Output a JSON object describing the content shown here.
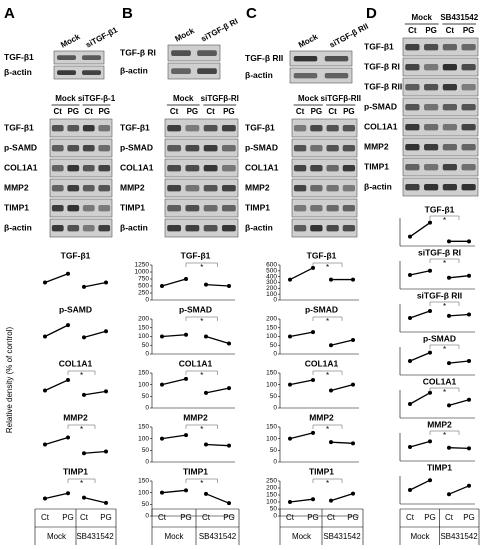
{
  "panels": [
    {
      "letter": "A",
      "top_blot": {
        "groups": [
          "Mock",
          "siTGF-β1"
        ],
        "rows": [
          "TGF-β1",
          "β-actin"
        ]
      },
      "main_blot": {
        "groups": [
          "Mock",
          "siTGF-β-1"
        ],
        "lanes": [
          "Ct",
          "PG",
          "Ct",
          "PG"
        ],
        "rows": [
          "TGF-β1",
          "p-SAMD",
          "COL1A1",
          "MMP2",
          "TIMP1",
          "β-actin"
        ]
      }
    },
    {
      "letter": "B",
      "top_blot": {
        "groups": [
          "Mock",
          "siTGF-β RI"
        ],
        "rows": [
          "TGF-β RI",
          "β-actin"
        ]
      },
      "main_blot": {
        "groups": [
          "Mock",
          "siTGFβ-RI"
        ],
        "lanes": [
          "Ct",
          "PG",
          "Ct",
          "PG"
        ],
        "rows": [
          "TGF-β1",
          "p-SMAD",
          "COL1A1",
          "MMP2",
          "TIMP1",
          "β-actin"
        ]
      }
    },
    {
      "letter": "C",
      "top_blot": {
        "groups": [
          "Mock",
          "siTGF-β RII"
        ],
        "rows": [
          "TGF-β RII",
          "β-actin"
        ]
      },
      "main_blot": {
        "groups": [
          "Mock",
          "siTGFβ-RII"
        ],
        "lanes": [
          "Ct",
          "PG",
          "Ct",
          "PG"
        ],
        "rows": [
          "TGF-β1",
          "p-SMAD",
          "COL1A1",
          "MMP2",
          "TIMP1",
          "β-actin"
        ]
      }
    },
    {
      "letter": "D",
      "main_blot": {
        "groups": [
          "Mock",
          "SB431542"
        ],
        "lanes": [
          "Ct",
          "PG",
          "Ct",
          "PG"
        ],
        "rows": [
          "TGF-β1",
          "TGF-β RI",
          "TGF-β RII",
          "p-SMAD",
          "COL1A1",
          "MMP2",
          "TIMP1",
          "β-actin"
        ]
      }
    }
  ],
  "y_axis_label": "Relative density (% of control)",
  "x_axes": [
    {
      "lanes": [
        "Ct",
        "PG",
        "Ct",
        "PG"
      ],
      "groups": [
        "Mock",
        "SB431542"
      ]
    },
    {
      "lanes": [
        "Ct",
        "PG",
        "Ct",
        "PG"
      ],
      "groups": [
        "Mock",
        "SB431542"
      ]
    },
    {
      "lanes": [
        "Ct",
        "PG",
        "Ct",
        "PG"
      ],
      "groups": [
        "Mock",
        "SB431542"
      ]
    },
    {
      "lanes": [
        "Ct",
        "PG",
        "Ct",
        "PG"
      ],
      "groups": [
        "Mock",
        "SB431542"
      ]
    }
  ],
  "chart_data": [
    {
      "type": "line",
      "title": "TGF-β1",
      "values": [
        100,
        150,
        75,
        100
      ],
      "ylim": [
        0,
        200
      ],
      "color": "#000000"
    },
    {
      "type": "line",
      "title": "p-SAMD",
      "values": [
        100,
        165,
        95,
        130
      ],
      "ylim": [
        0,
        200
      ],
      "color": "#000000"
    },
    {
      "type": "line",
      "title": "COL1A1",
      "values": [
        100,
        160,
        75,
        95
      ],
      "ylim": [
        0,
        200
      ],
      "color": "#000000",
      "annotation": "*"
    },
    {
      "type": "line",
      "title": "MMP2",
      "values": [
        100,
        140,
        50,
        60
      ],
      "ylim": [
        0,
        200
      ],
      "color": "#000000",
      "annotation": "*"
    },
    {
      "type": "line",
      "title": "TIMP1",
      "values": [
        100,
        130,
        105,
        75
      ],
      "ylim": [
        0,
        200
      ],
      "color": "#000000",
      "annotation": "*"
    },
    {
      "type": "line",
      "title": "TGF-β1",
      "values": [
        500,
        750,
        550,
        500
      ],
      "ylim": [
        0,
        1250
      ],
      "yticks": [
        0,
        250,
        500,
        750,
        1000,
        1250
      ],
      "color": "#000000",
      "annotation": "*"
    },
    {
      "type": "line",
      "title": "p-SMAD",
      "values": [
        100,
        110,
        100,
        60
      ],
      "ylim": [
        0,
        200
      ],
      "yticks": [
        0,
        50,
        100,
        150,
        200
      ],
      "color": "#000000",
      "annotation": "*"
    },
    {
      "type": "line",
      "title": "COL1A1",
      "values": [
        100,
        125,
        65,
        85
      ],
      "ylim": [
        0,
        150
      ],
      "yticks": [
        0,
        50,
        100,
        150
      ],
      "color": "#000000",
      "annotation": "*"
    },
    {
      "type": "line",
      "title": "MMP2",
      "values": [
        100,
        115,
        75,
        70
      ],
      "ylim": [
        0,
        150
      ],
      "yticks": [
        0,
        50,
        100,
        150
      ],
      "color": "#000000",
      "annotation": "*"
    },
    {
      "type": "line",
      "title": "TIMP1",
      "values": [
        100,
        110,
        95,
        55
      ],
      "ylim": [
        0,
        150
      ],
      "yticks": [
        0,
        50,
        100,
        150
      ],
      "color": "#000000",
      "annotation": "*"
    },
    {
      "type": "line",
      "title": "TGF-β1",
      "values": [
        350,
        550,
        350,
        350
      ],
      "ylim": [
        0,
        600
      ],
      "yticks": [
        0,
        100,
        200,
        300,
        400,
        500,
        600
      ],
      "color": "#000000",
      "annotation": "*"
    },
    {
      "type": "line",
      "title": "p-SMAD",
      "values": [
        100,
        125,
        50,
        80
      ],
      "ylim": [
        0,
        200
      ],
      "yticks": [
        0,
        50,
        100,
        150,
        200
      ],
      "color": "#000000",
      "annotation": "*"
    },
    {
      "type": "line",
      "title": "COL1A1",
      "values": [
        100,
        120,
        75,
        100
      ],
      "ylim": [
        0,
        150
      ],
      "yticks": [
        0,
        50,
        100,
        150
      ],
      "color": "#000000",
      "annotation": "*"
    },
    {
      "type": "line",
      "title": "MMP2",
      "values": [
        100,
        125,
        85,
        80
      ],
      "ylim": [
        0,
        150
      ],
      "yticks": [
        0,
        50,
        100,
        150
      ],
      "color": "#000000",
      "annotation": "*"
    },
    {
      "type": "line",
      "title": "TIMP1",
      "values": [
        100,
        120,
        110,
        160
      ],
      "ylim": [
        0,
        250
      ],
      "yticks": [
        0,
        50,
        100,
        150,
        200,
        250
      ],
      "color": "#000000",
      "annotation": "*"
    },
    {
      "type": "line",
      "title": "TGF-β1",
      "values": [
        100,
        250,
        50,
        50
      ],
      "ylim": [
        0,
        300
      ],
      "color": "#000000",
      "annotation": "*"
    },
    {
      "type": "line",
      "title": "siTGF-β RI",
      "values": [
        100,
        130,
        80,
        95
      ],
      "ylim": [
        0,
        200
      ],
      "color": "#000000",
      "annotation": "*"
    },
    {
      "type": "line",
      "title": "siTGF-β RII",
      "values": [
        100,
        150,
        115,
        125
      ],
      "ylim": [
        0,
        200
      ],
      "color": "#000000",
      "annotation": "*"
    },
    {
      "type": "line",
      "title": "p-SMAD",
      "values": [
        100,
        160,
        85,
        100
      ],
      "ylim": [
        0,
        200
      ],
      "color": "#000000",
      "annotation": "*"
    },
    {
      "type": "line",
      "title": "COL1A1",
      "values": [
        100,
        180,
        90,
        130
      ],
      "ylim": [
        0,
        200
      ],
      "color": "#000000",
      "annotation": "*"
    },
    {
      "type": "line",
      "title": "MMP2",
      "values": [
        100,
        140,
        95,
        90
      ],
      "ylim": [
        0,
        200
      ],
      "color": "#000000",
      "annotation": "*"
    },
    {
      "type": "line",
      "title": "TIMP1",
      "values": [
        100,
        170,
        70,
        130
      ],
      "ylim": [
        0,
        200
      ],
      "color": "#000000"
    }
  ]
}
